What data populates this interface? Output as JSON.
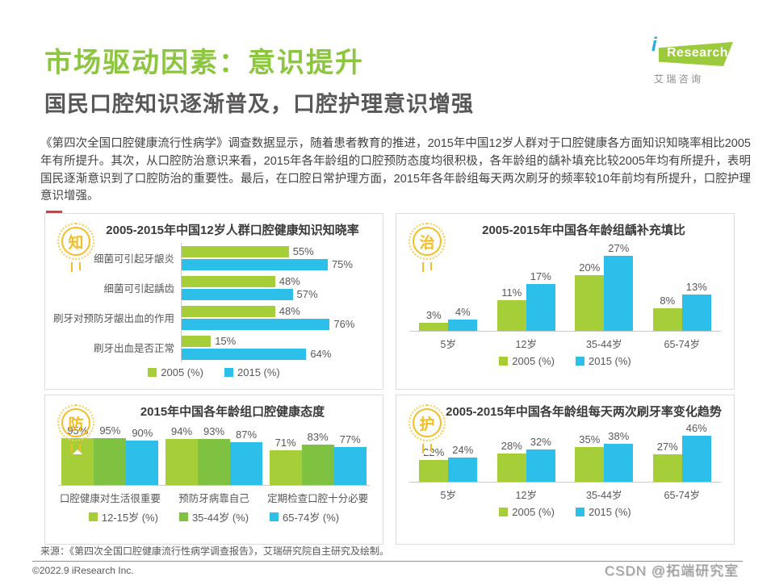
{
  "header": {
    "title": "市场驱动因素：意识提升",
    "subtitle": "国民口腔知识逐渐普及，口腔护理意识增强"
  },
  "logo": {
    "i": "i",
    "research": "Research",
    "chinese": "艾 瑞 咨 询"
  },
  "intro": {
    "text": "《第四次全国口腔健康流行性病学》调查数据显示，随着患者教育的推进，2015年中国12岁人群对于口腔健康各方面知识知晓率相比2005年有所提升。其次，从口腔防治意识来看，2015年各年龄组的口腔预防态度均很积极，各年龄组的龋补填充比较2005年均有所提升，表明国民逐渐意识到了口腔防治的重要性。最后，在口腔日常护理方面，2015年各年龄组每天两次刷牙的频率较10年前均有所提升，口腔护理意识增强。"
  },
  "colors": {
    "title_green": "#8CC63F",
    "bar_green_2005": "#A5CE39",
    "bar_green_mid": "#7FC241",
    "bar_blue_2015": "#2BBFE9",
    "badge_yellow": "#F2BE23"
  },
  "chart_data": [
    {
      "type": "bar",
      "orientation": "horizontal",
      "badge": "知",
      "title": "2005-2015年中国12岁人群口腔健康知识知晓率",
      "categories": [
        "细菌可引起牙龈炎",
        "细菌可引起龋齿",
        "刷牙对预防牙龈出血的作用",
        "刷牙出血是否正常"
      ],
      "series": [
        {
          "name": "2005 (%)",
          "color": "#A5CE39",
          "values": [
            55,
            48,
            48,
            15
          ]
        },
        {
          "name": "2015 (%)",
          "color": "#2BBFE9",
          "values": [
            75,
            57,
            76,
            64
          ]
        }
      ],
      "xlim": [
        0,
        80
      ],
      "unit": "%",
      "legend_position": "bottom"
    },
    {
      "type": "bar",
      "orientation": "vertical",
      "badge": "治",
      "title": "2005-2015年中国各年龄组龋补充填比",
      "categories": [
        "5岁",
        "12岁",
        "35-44岁",
        "65-74岁"
      ],
      "series": [
        {
          "name": "2005 (%)",
          "color": "#A5CE39",
          "values": [
            3,
            11,
            20,
            8
          ]
        },
        {
          "name": "2015 (%)",
          "color": "#2BBFE9",
          "values": [
            4,
            17,
            27,
            13
          ]
        }
      ],
      "ylim": [
        0,
        30
      ],
      "unit": "%",
      "legend_position": "bottom"
    },
    {
      "type": "bar",
      "orientation": "vertical",
      "badge": "防",
      "title": "2015年中国各年龄组口腔健康态度",
      "categories": [
        "口腔健康对生活很重要",
        "预防牙病靠自己",
        "定期检查口腔十分必要"
      ],
      "series": [
        {
          "name": "12-15岁 (%)",
          "color": "#A5CE39",
          "values": [
            95,
            94,
            71
          ]
        },
        {
          "name": "35-44岁 (%)",
          "color": "#7FC241",
          "values": [
            95,
            93,
            83
          ]
        },
        {
          "name": "65-74岁 (%)",
          "color": "#2BBFE9",
          "values": [
            90,
            87,
            77
          ]
        }
      ],
      "ylim": [
        0,
        100
      ],
      "unit": "%",
      "legend_position": "bottom"
    },
    {
      "type": "bar",
      "orientation": "vertical",
      "badge": "护",
      "title": "2005-2015年中国各年龄组每天两次刷牙率变化趋势",
      "categories": [
        "5岁",
        "12岁",
        "35-44岁",
        "65-74岁"
      ],
      "series": [
        {
          "name": "2005 (%)",
          "color": "#A5CE39",
          "values": [
            22,
            28,
            35,
            27
          ]
        },
        {
          "name": "2015 (%)",
          "color": "#2BBFE9",
          "values": [
            24,
            32,
            38,
            46
          ]
        }
      ],
      "ylim": [
        0,
        50
      ],
      "unit": "%",
      "legend_position": "bottom"
    }
  ],
  "footer": {
    "source": "来源：《第四次全国口腔健康流行性病学调查报告》，艾瑞研究院自主研究及绘制。",
    "copyright": "©2022.9 iResearch Inc.",
    "watermark": "CSDN @拓端研究室"
  }
}
